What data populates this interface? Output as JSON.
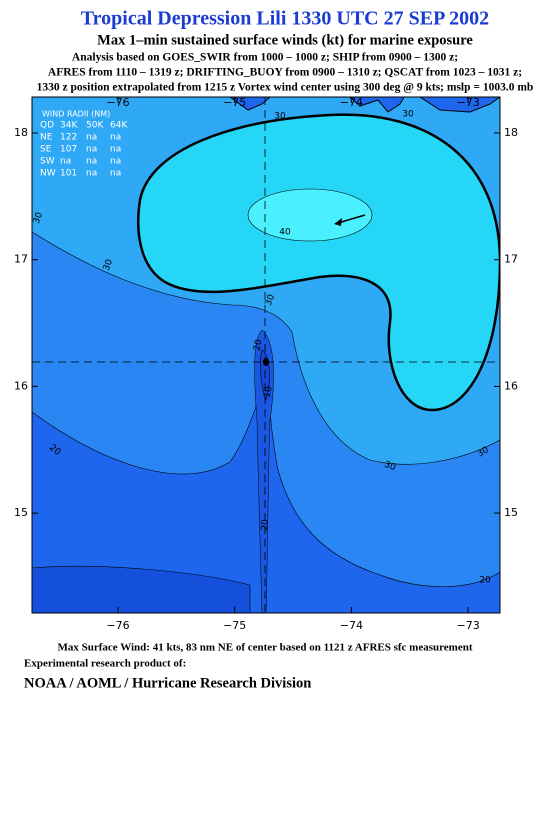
{
  "header": {
    "title": "Tropical Depression Lili 1330 UTC 27 SEP 2002",
    "subtitle": "Max 1–min sustained surface winds (kt) for marine exposure",
    "analysis": [
      "Analysis based on  GOES_SWIR from 1000 – 1000 z;  SHIP from 0900 – 1300 z;",
      "AFRES from 1110 – 1319 z;  DRIFTING_BUOY from 0900 – 1310 z;  QSCAT from 1023 – 1031 z;",
      "1330 z position extrapolated from 1215 z Vortex wind center using 300 deg @ 9 kts; mslp = 1003.0 mb"
    ]
  },
  "map": {
    "lon_ticks": [
      {
        "value": -76,
        "label": "−76"
      },
      {
        "value": -75,
        "label": "−75"
      },
      {
        "value": -74,
        "label": "−74"
      },
      {
        "value": -73,
        "label": "−73"
      }
    ],
    "lat_ticks": [
      18,
      17,
      16,
      15
    ],
    "wind_radii": {
      "title": "WIND RADII (NM)",
      "columns": [
        "QD",
        "34K",
        "50K",
        "64K"
      ],
      "rows": [
        [
          "NE",
          "122",
          "na",
          "na"
        ],
        [
          "SE",
          "107",
          "na",
          "na"
        ],
        [
          "SW",
          "na",
          "na",
          "na"
        ],
        [
          "NW",
          "101",
          "na",
          "na"
        ]
      ]
    },
    "contour_labels": [
      "30",
      "30",
      "30",
      "30",
      "40",
      "30",
      "20",
      "10",
      "20",
      "30",
      "30",
      "20",
      "20"
    ]
  },
  "footer": {
    "max_wind": "Max Surface Wind: 41 kts, 83 nm NE of center based on 1121 z AFRES sfc measurement",
    "product": "Experimental research product of:",
    "org": "NOAA / AOML / Hurricane Research Division"
  }
}
